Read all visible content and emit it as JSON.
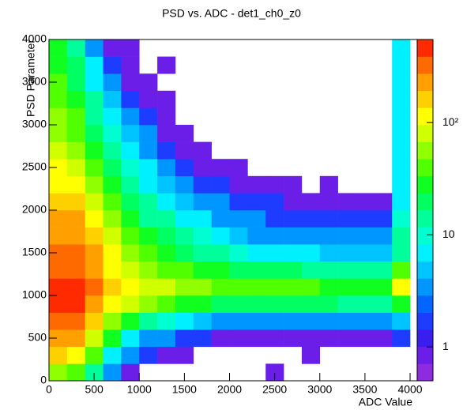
{
  "chart_data": {
    "type": "heatmap",
    "title": "PSD vs. ADC - det1_ch0_z0",
    "x_label": "ADC Value",
    "y_label": "PSD Parameter",
    "xlim": [
      0,
      4096
    ],
    "ylim": [
      0,
      4000
    ],
    "xticks": [
      0,
      500,
      1000,
      1500,
      2000,
      2500,
      3000,
      3500,
      4000
    ],
    "yticks": [
      0,
      500,
      1000,
      1500,
      2000,
      2500,
      3000,
      3500,
      4000
    ],
    "zlim": [
      0.5,
      550
    ],
    "zticks": [
      1,
      10,
      {
        "value": 100,
        "label": "10²"
      }
    ],
    "z_log": true,
    "palette": [
      "#8c2be0",
      "#6a1ee8",
      "#3a1ef0",
      "#1e3cff",
      "#0066ff",
      "#0096ff",
      "#00c4ff",
      "#00f0ff",
      "#00ffd0",
      "#00ff9a",
      "#00ff60",
      "#10ff20",
      "#50ff00",
      "#90ff00",
      "#d0ff00",
      "#ffff00",
      "#ffd000",
      "#ffa000",
      "#ff6a00",
      "#ff2a00"
    ],
    "x_bins": [
      0,
      200,
      400,
      600,
      800,
      1000,
      1200,
      1400,
      1600,
      1800,
      2000,
      2200,
      2400,
      2600,
      2800,
      3000,
      3200,
      3400,
      3600,
      3800,
      4000
    ],
    "y_bins": [
      0,
      200,
      400,
      600,
      800,
      1000,
      1200,
      1400,
      1600,
      1800,
      2000,
      2200,
      2400,
      2600,
      2800,
      3000,
      3200,
      3400,
      3600,
      3800,
      4000
    ],
    "values": [
      [
        60,
        40,
        15,
        3,
        1,
        null,
        null,
        null,
        null,
        null,
        null,
        null,
        1,
        null,
        null,
        null,
        null,
        null,
        null,
        null
      ],
      [
        150,
        120,
        40,
        8,
        3,
        2,
        1,
        1,
        null,
        null,
        null,
        null,
        null,
        null,
        1,
        null,
        null,
        null,
        null,
        null
      ],
      [
        250,
        200,
        80,
        25,
        8,
        4,
        3,
        2,
        2,
        1,
        1,
        1,
        1,
        1,
        1,
        1,
        1,
        1,
        1,
        2
      ],
      [
        350,
        300,
        150,
        60,
        30,
        15,
        10,
        6,
        5,
        4,
        4,
        4,
        4,
        3,
        4,
        3,
        3,
        3,
        3,
        5
      ],
      [
        400,
        400,
        250,
        120,
        80,
        50,
        40,
        30,
        25,
        22,
        20,
        20,
        20,
        18,
        18,
        18,
        16,
        16,
        16,
        30
      ],
      [
        400,
        420,
        280,
        150,
        100,
        80,
        70,
        60,
        50,
        45,
        40,
        40,
        38,
        35,
        35,
        30,
        30,
        28,
        28,
        100
      ],
      [
        380,
        380,
        250,
        120,
        80,
        55,
        45,
        35,
        30,
        25,
        22,
        20,
        20,
        18,
        16,
        15,
        14,
        14,
        14,
        40
      ],
      [
        300,
        300,
        200,
        100,
        60,
        40,
        30,
        20,
        15,
        12,
        10,
        8,
        7,
        6,
        6,
        5,
        5,
        5,
        5,
        15
      ],
      [
        250,
        250,
        150,
        70,
        40,
        25,
        18,
        12,
        9,
        7,
        5,
        4,
        4,
        3,
        3,
        3,
        3,
        3,
        3,
        12
      ],
      [
        200,
        200,
        120,
        50,
        28,
        16,
        12,
        8,
        6,
        4,
        3,
        3,
        2,
        2,
        2,
        2,
        2,
        2,
        2,
        10
      ],
      [
        150,
        150,
        80,
        35,
        20,
        12,
        8,
        5,
        4,
        3,
        2,
        2,
        2,
        1,
        1,
        1,
        1,
        1,
        1,
        8
      ],
      [
        120,
        110,
        60,
        25,
        14,
        8,
        5,
        3,
        2,
        2,
        1,
        1,
        1,
        1,
        null,
        1,
        null,
        null,
        null,
        8
      ],
      [
        100,
        80,
        40,
        18,
        10,
        6,
        4,
        2,
        1,
        1,
        1,
        null,
        null,
        null,
        null,
        null,
        null,
        null,
        null,
        8
      ],
      [
        80,
        60,
        30,
        14,
        8,
        4,
        2,
        1,
        1,
        null,
        null,
        null,
        null,
        null,
        null,
        null,
        null,
        null,
        null,
        8
      ],
      [
        60,
        45,
        22,
        10,
        5,
        3,
        1,
        1,
        null,
        null,
        null,
        null,
        null,
        null,
        null,
        null,
        null,
        null,
        null,
        8
      ],
      [
        50,
        35,
        16,
        7,
        3,
        2,
        1,
        null,
        null,
        null,
        null,
        null,
        null,
        null,
        null,
        null,
        null,
        null,
        null,
        8
      ],
      [
        40,
        28,
        12,
        5,
        2,
        1,
        1,
        null,
        null,
        null,
        null,
        null,
        null,
        null,
        null,
        null,
        null,
        null,
        null,
        8
      ],
      [
        35,
        22,
        8,
        3,
        1,
        1,
        null,
        null,
        null,
        null,
        null,
        null,
        null,
        null,
        null,
        null,
        null,
        null,
        null,
        8
      ],
      [
        30,
        18,
        6,
        2,
        1,
        null,
        1,
        null,
        null,
        null,
        null,
        null,
        null,
        null,
        null,
        null,
        null,
        null,
        null,
        8
      ],
      [
        25,
        14,
        4,
        1,
        1,
        null,
        null,
        null,
        null,
        null,
        null,
        null,
        null,
        null,
        null,
        null,
        null,
        null,
        null,
        8
      ]
    ]
  }
}
